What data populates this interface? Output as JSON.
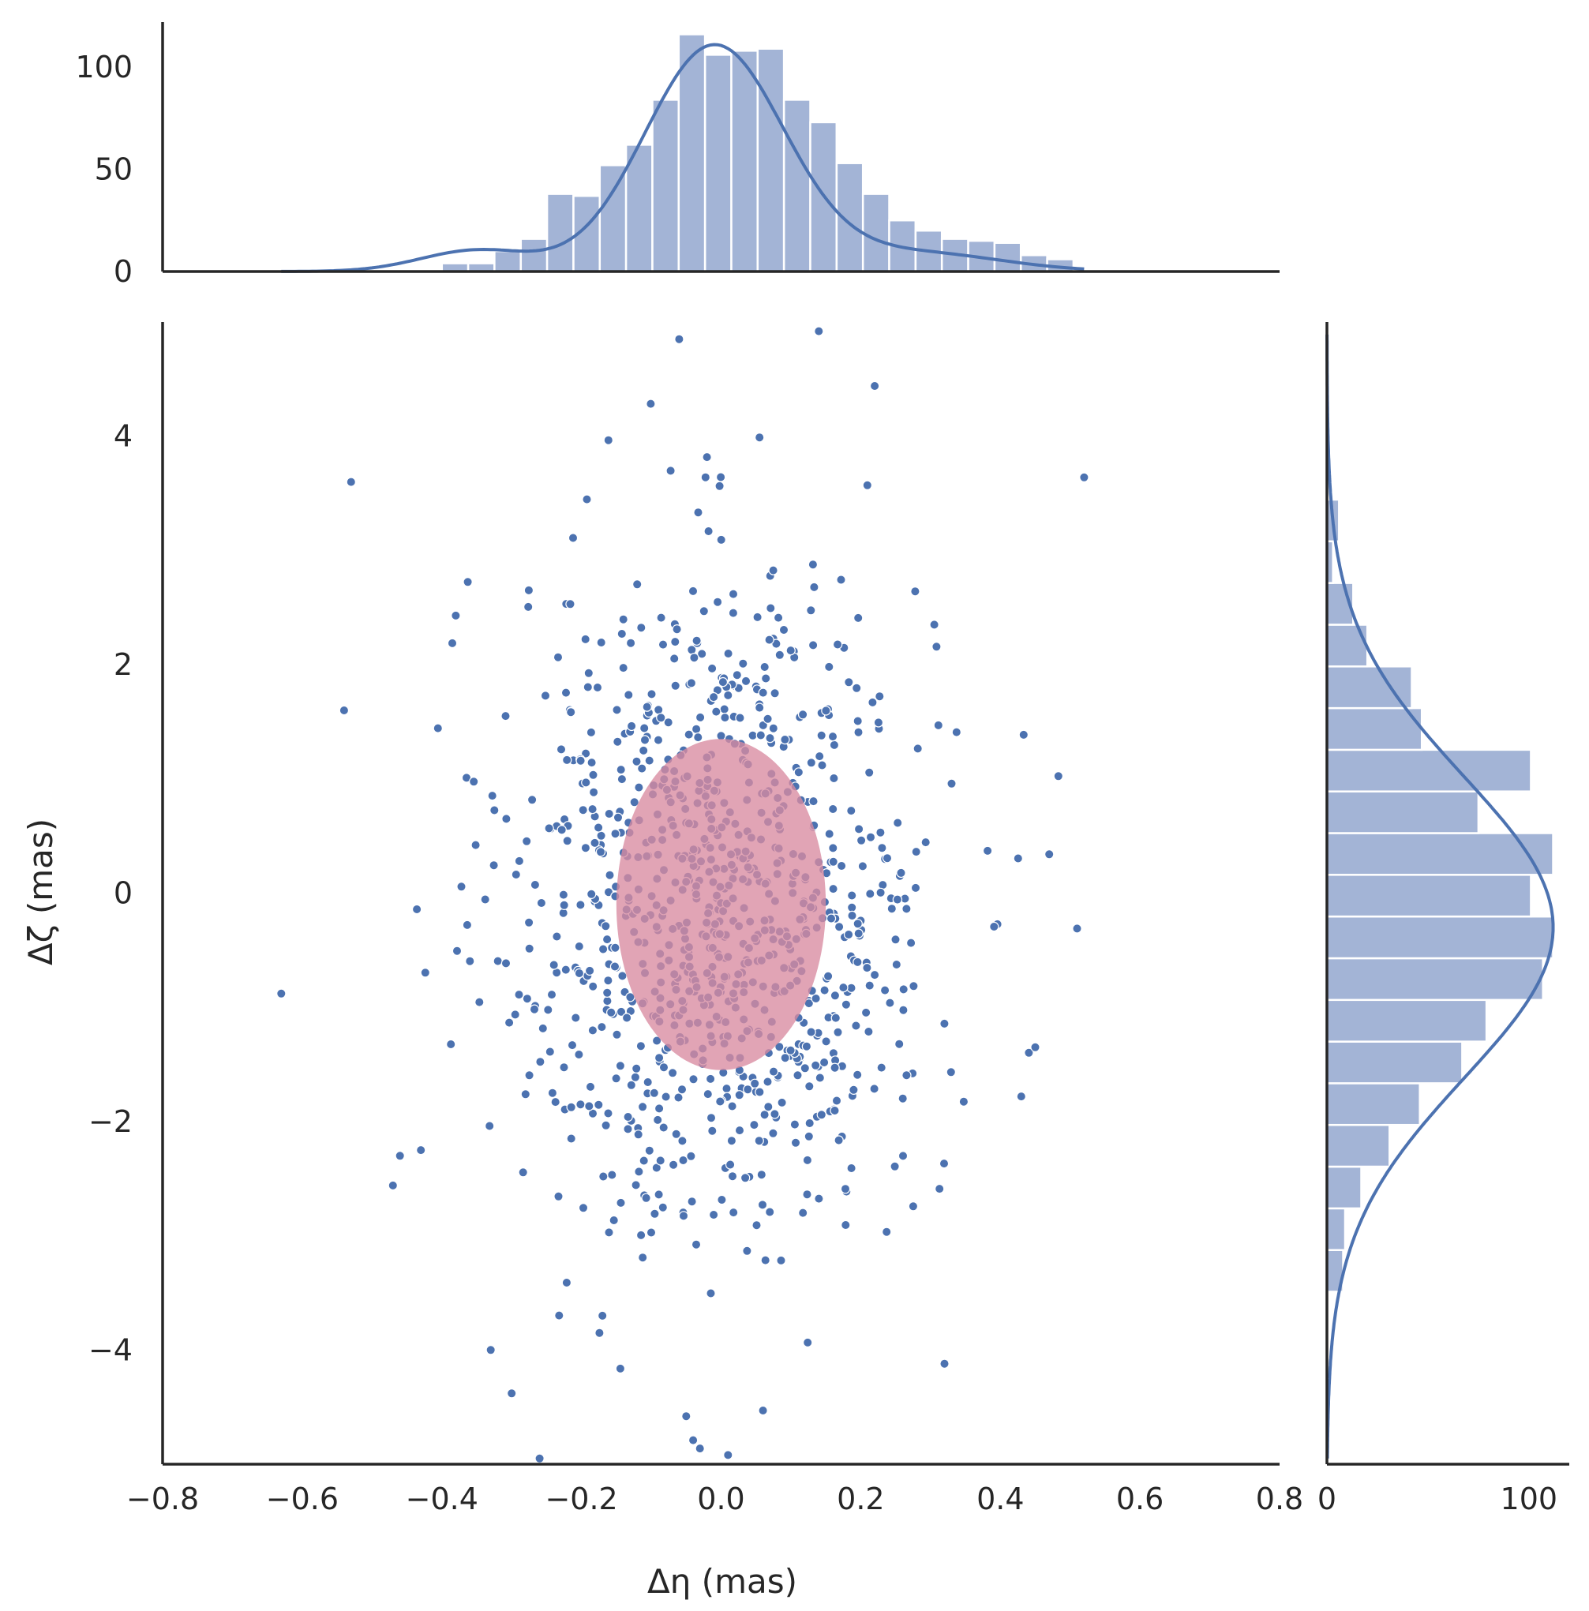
{
  "chart_data": {
    "type": "scatter",
    "title": "",
    "xlabel": "Δη (mas)",
    "ylabel": "Δζ (mas)",
    "xlim": [
      -0.8,
      0.8
    ],
    "ylim": [
      -5.0,
      5.0
    ],
    "xticks": [
      "−0.8",
      "−0.6",
      "−0.4",
      "−0.2",
      "0.0",
      "0.2",
      "0.4",
      "0.6",
      "0.8"
    ],
    "xtick_values": [
      -0.8,
      -0.6,
      -0.4,
      -0.2,
      0.0,
      0.2,
      0.4,
      0.6,
      0.8
    ],
    "yticks": [
      "−4",
      "−2",
      "0",
      "2",
      "4"
    ],
    "ytick_values": [
      -4,
      -2,
      0,
      2,
      4
    ],
    "grid": false,
    "colors": {
      "points": "#4c72b0",
      "hist": "#a3b4d6",
      "kde": "#4c72b0",
      "ellipse": "#d98aa0",
      "axes": "#262626"
    },
    "scatter": {
      "n_points": 1000,
      "distribution": "approximately Gaussian",
      "x_center": 0.0,
      "x_std": 0.15,
      "y_center": -0.1,
      "y_std": 1.45,
      "outliers": [
        [
          -0.63,
          -0.88
        ],
        [
          -0.53,
          3.6
        ],
        [
          -0.54,
          1.6
        ],
        [
          -0.47,
          -2.56
        ],
        [
          -0.46,
          -2.3
        ],
        [
          -0.43,
          -2.25
        ],
        [
          -0.38,
          2.43
        ],
        [
          -0.33,
          -4.0
        ],
        [
          -0.3,
          -4.38
        ],
        [
          -0.26,
          -4.95
        ],
        [
          -0.06,
          4.85
        ],
        [
          0.14,
          4.92
        ],
        [
          0.22,
          4.44
        ],
        [
          0.52,
          3.64
        ],
        [
          0.51,
          -0.31
        ],
        [
          0.47,
          0.34
        ],
        [
          0.45,
          -1.35
        ],
        [
          0.32,
          -4.12
        ],
        [
          -0.05,
          -4.58
        ],
        [
          0.06,
          -4.53
        ],
        [
          0.01,
          -4.92
        ],
        [
          -0.04,
          -4.79
        ],
        [
          0.43,
          -1.78
        ],
        [
          -0.17,
          -3.7
        ]
      ]
    },
    "ellipse": {
      "center_x": 0.0,
      "center_y": -0.1,
      "semi_x": 0.15,
      "semi_y": 1.45
    },
    "top_histogram": {
      "axis": "Δη",
      "yticks": [
        "0",
        "50",
        "100"
      ],
      "ytick_values": [
        0,
        50,
        100
      ],
      "ylim": [
        0,
        122
      ],
      "bin_edges_start": -0.4377,
      "bin_width": 0.0377,
      "counts": [
        1,
        4,
        4,
        10,
        16,
        38,
        37,
        52,
        62,
        84,
        116,
        106,
        108,
        109,
        84,
        73,
        53,
        38,
        25,
        20,
        16,
        15,
        14,
        8,
        6
      ],
      "kde_peak": 111
    },
    "right_histogram": {
      "axis": "Δζ",
      "xticks": [
        "0",
        "100"
      ],
      "xtick_values": [
        0,
        100
      ],
      "xlim": [
        0,
        120
      ],
      "bin_edges_start": -4.95,
      "bin_width": 0.365,
      "counts": [
        0,
        1,
        1,
        1,
        8,
        9,
        17,
        31,
        46,
        67,
        79,
        107,
        112,
        101,
        112,
        75,
        101,
        47,
        42,
        20,
        13,
        3,
        6,
        1,
        0
      ],
      "kde_peak": 112
    }
  }
}
